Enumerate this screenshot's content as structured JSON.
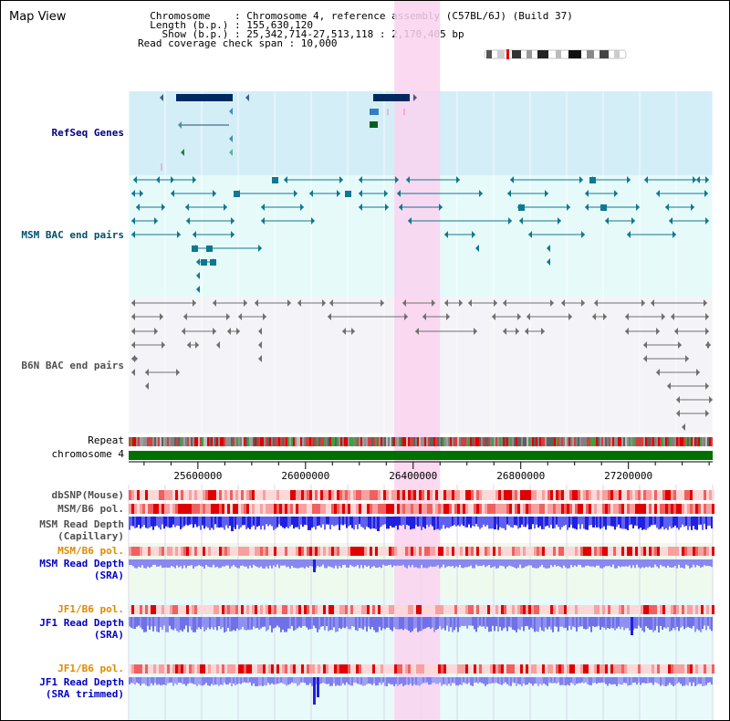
{
  "header": {
    "title": "Map View",
    "info_lines": [
      "  Chromosome    : Chromosome 4, reference assembly (C57BL/6J) (Build 37)",
      "  Length (b.p.) : 155,630,120",
      "    Show (b.p.) : 25,342,714-27,513,118 : 2,170,405 bp",
      "Read coverage check span : 10,000"
    ]
  },
  "tracks": {
    "refseq": "RefSeq Genes",
    "msm_bac": "MSM BAC end pairs",
    "b6n_bac": "B6N BAC end pairs",
    "repeat": "Repeat",
    "chromosome": "chromosome 4",
    "dbsnp": "dbSNP(Mouse)",
    "msm_b6_pol": "MSM/B6 pol.",
    "msm_depth_cap_1": "MSM Read Depth",
    "msm_depth_cap_2": "(Capillary)",
    "msm_b6_pol_sra": "MSM/B6 pol.",
    "msm_depth_sra_1": "MSM Read Depth",
    "msm_depth_sra_2": "(SRA)",
    "jf1_b6_pol": "JF1/B6 pol.",
    "jf1_depth_sra_1": "JF1 Read Depth",
    "jf1_depth_sra_2": "(SRA)",
    "jf1_b6_pol_trim": "JF1/B6 pol.",
    "jf1_depth_trim_1": "JF1 Read Depth",
    "jf1_depth_trim_2": "(SRA trimmed)"
  },
  "axis": {
    "ticks": [
      "25600000",
      "26000000",
      "26400000",
      "26800000",
      "27200000"
    ],
    "tick_values": [
      25600000,
      26000000,
      26400000,
      26800000,
      27200000
    ],
    "range": [
      25342714,
      27513118
    ]
  },
  "highlight_region": [
    26330000,
    26500000
  ],
  "colors": {
    "refseq_bg": "#d4eef8",
    "msm_bg": "#e6fafa",
    "b6n_bg": "#f4f4f8",
    "highlight": "#f9d2ee",
    "chromosome": "#007000",
    "refseq_gene": "#002a60",
    "msm_pair": "#107890",
    "b6n_pair": "#707070",
    "depth_blue": "#2020e0",
    "depth_light": "#8080f0"
  }
}
